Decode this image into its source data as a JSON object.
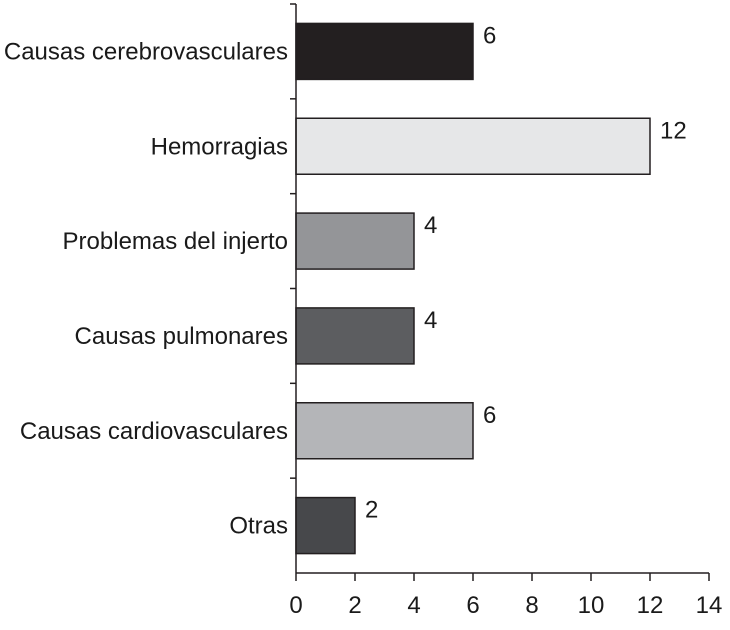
{
  "chart_data": {
    "type": "bar",
    "orientation": "horizontal",
    "title": "",
    "xlabel": "",
    "ylabel": "",
    "categories": [
      "Causas cerebrovasculares",
      "Hemorragias",
      "Problemas del injerto",
      "Causas pulmonares",
      "Causas cardiovasculares",
      "Otras"
    ],
    "values": [
      6,
      12,
      4,
      4,
      6,
      2
    ],
    "data_labels": [
      "6",
      "12",
      "4",
      "4",
      "6",
      "2"
    ],
    "bar_colors": [
      "#231f20",
      "#e6e7e8",
      "#949598",
      "#5c5d60",
      "#b4b5b8",
      "#47484b"
    ],
    "xlim": [
      0,
      14
    ],
    "xticks": [
      0,
      2,
      4,
      6,
      8,
      10,
      12,
      14
    ],
    "xtick_labels": [
      "0",
      "2",
      "4",
      "6",
      "8",
      "10",
      "12",
      "14"
    ],
    "grid": false,
    "legend": "none"
  }
}
